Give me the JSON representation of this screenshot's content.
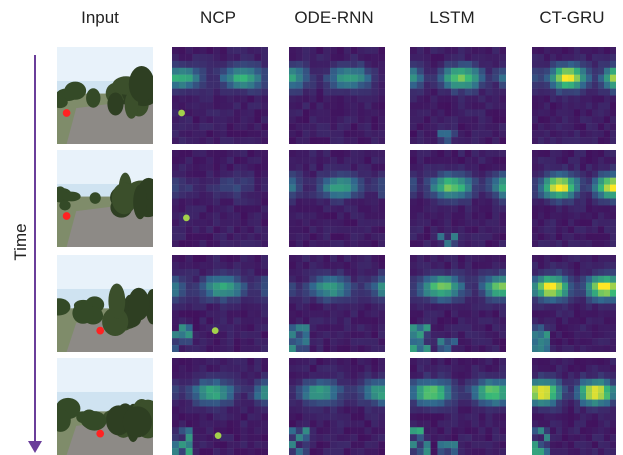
{
  "columns": [
    {
      "key": "input",
      "label": "Input"
    },
    {
      "key": "ncp",
      "label": "NCP"
    },
    {
      "key": "ode",
      "label": "ODE-RNN"
    },
    {
      "key": "lstm",
      "label": "LSTM"
    },
    {
      "key": "ctgru",
      "label": "CT-GRU"
    }
  ],
  "row_axis_label": "Time",
  "colors": {
    "axis": "#6a3d9a",
    "heat_low": "#440154",
    "heat_mid": "#31688e",
    "heat_mid2": "#35b779",
    "heat_high": "#fde725"
  }
}
